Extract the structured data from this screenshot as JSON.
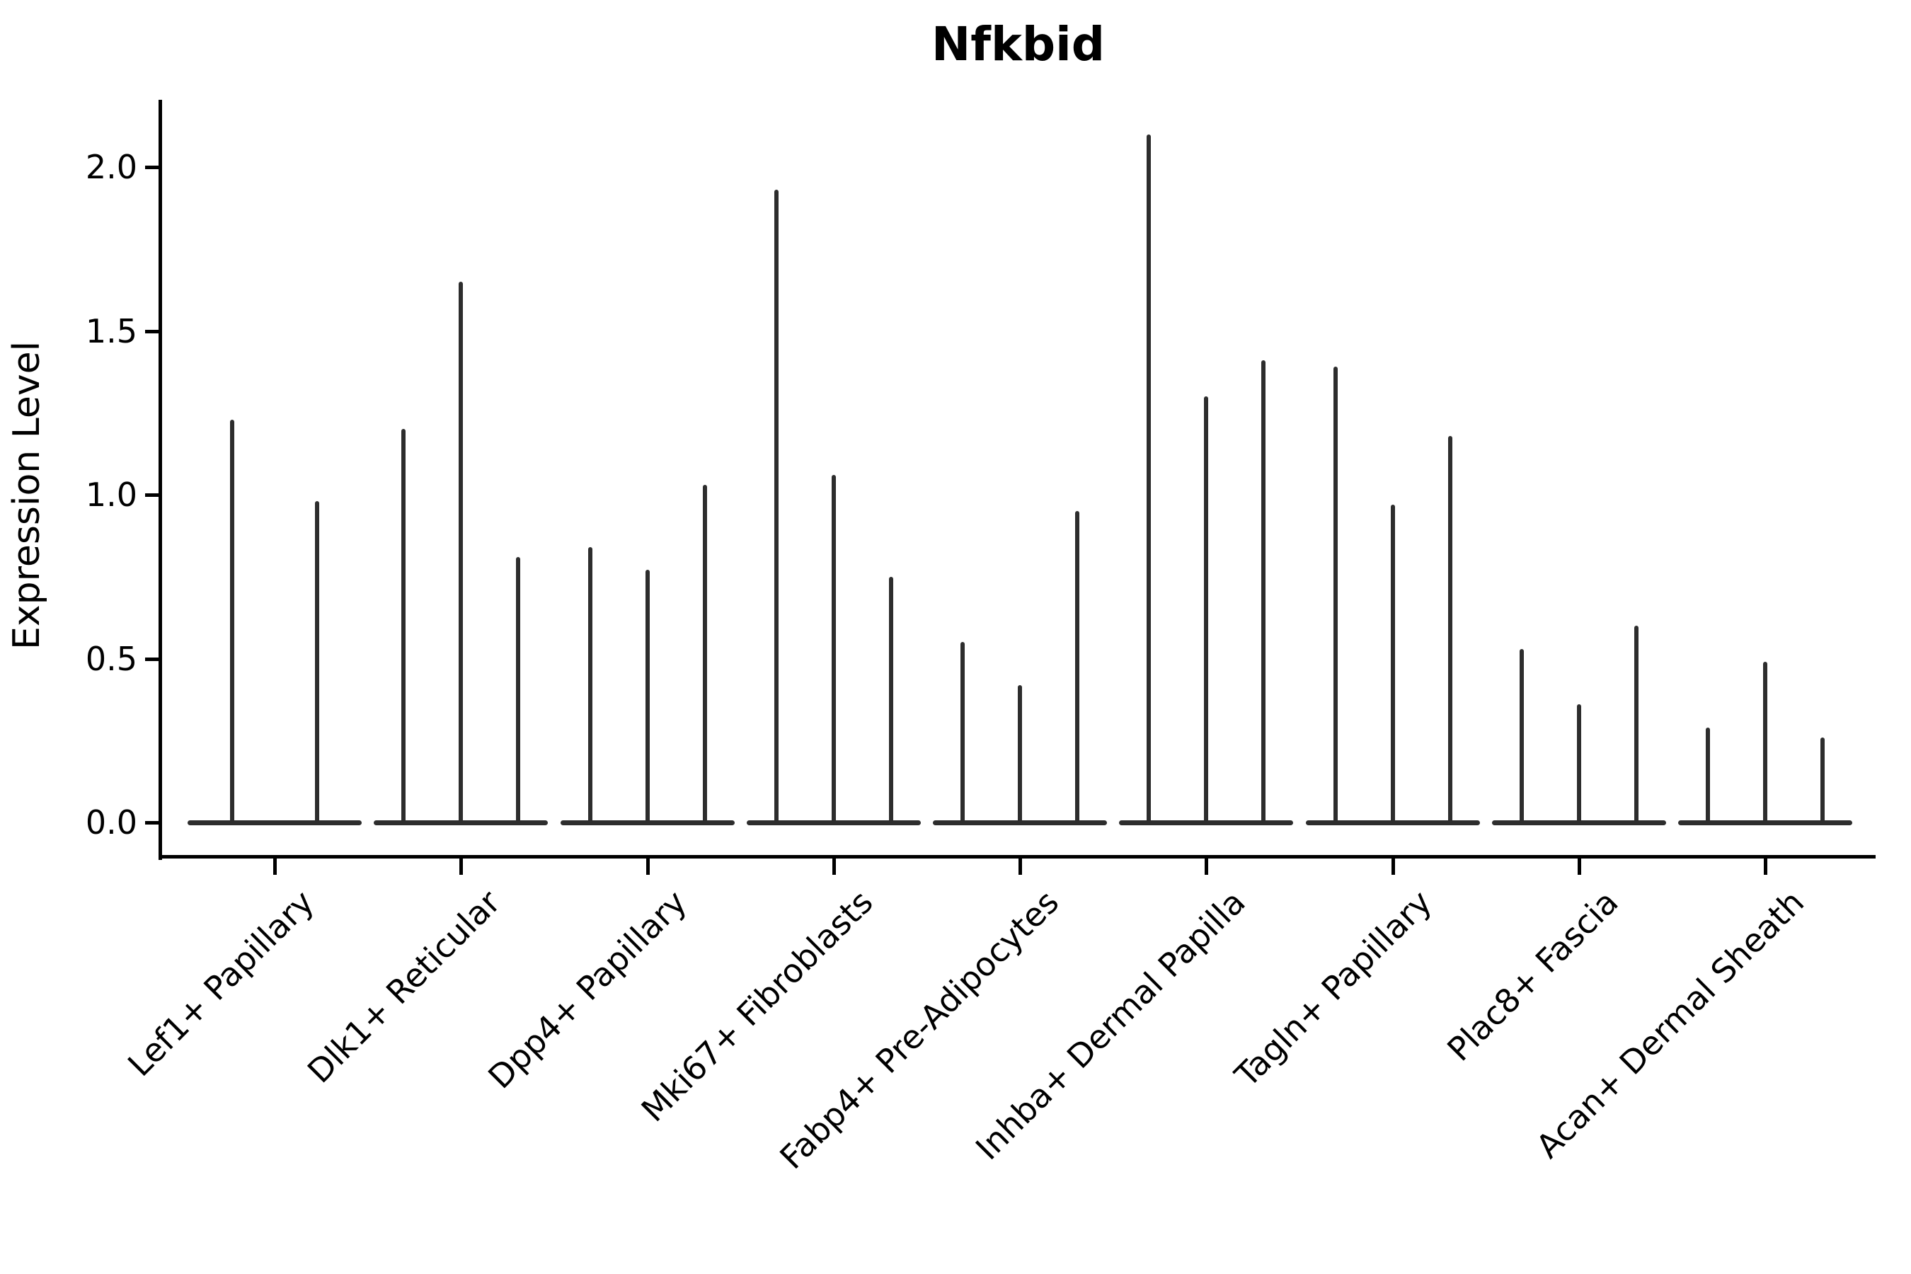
{
  "chart_data": {
    "type": "violin",
    "title": "Nfkbid",
    "ylabel": "Expression Level",
    "xlabel": "",
    "categories": [
      "Lef1+ Papillary",
      "Dlk1+ Reticular",
      "Dpp4+ Papillary",
      "Mki67+ Fibroblasts",
      "Fabp4+ Pre-Adipocytes",
      "Inhba+ Dermal Papilla",
      "Tagln+ Papillary",
      "Plac8+ Fascia",
      "Acan+ Dermal Sheath"
    ],
    "series": [
      {
        "category": "Lef1+ Papillary",
        "violin_max_values": [
          1.23,
          0.98
        ]
      },
      {
        "category": "Dlk1+ Reticular",
        "violin_max_values": [
          1.2,
          1.65,
          0.81
        ]
      },
      {
        "category": "Dpp4+ Papillary",
        "violin_max_values": [
          0.84,
          0.77,
          1.03
        ]
      },
      {
        "category": "Mki67+ Fibroblasts",
        "violin_max_values": [
          1.93,
          1.06,
          0.75
        ]
      },
      {
        "category": "Fabp4+ Pre-Adipocytes",
        "violin_max_values": [
          0.55,
          0.42,
          0.95
        ]
      },
      {
        "category": "Inhba+ Dermal Papilla",
        "violin_max_values": [
          2.1,
          1.3,
          1.41
        ]
      },
      {
        "category": "Tagln+ Papillary",
        "violin_max_values": [
          1.39,
          0.97,
          1.18
        ]
      },
      {
        "category": "Plac8+ Fascia",
        "violin_max_values": [
          0.53,
          0.36,
          0.6
        ]
      },
      {
        "category": "Acan+ Dermal Sheath",
        "violin_max_values": [
          0.29,
          0.49,
          0.26
        ]
      }
    ],
    "yticks": [
      0.0,
      0.5,
      1.0,
      1.5,
      2.0
    ],
    "ylim": [
      -0.1,
      2.2
    ],
    "grid": false,
    "legend": null,
    "violin_style": "thin vertical spikes (near-zero width violins) with wide flat bases at expression 0",
    "colors": {
      "violin": "#2d2d2d",
      "axis": "#000000",
      "text": "#000000",
      "background": "#ffffff"
    }
  }
}
